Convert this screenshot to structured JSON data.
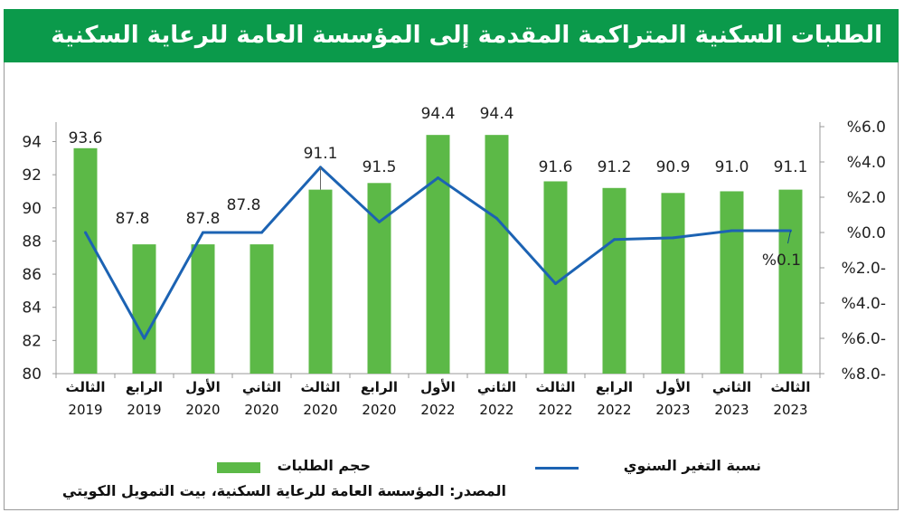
{
  "title": "الطلبات السكنية المتراكمة المقدمة إلى المؤسسة العامة للرعاية السكنية",
  "legend": {
    "bars": "حجم الطلبات",
    "line": "نسبة التغير السنوي"
  },
  "source": "المصدر: المؤسسة العامة للرعاية السكنية، بيت التمويل الكويتي",
  "colors": {
    "header": "#0b9a4b",
    "bar": "#5cb947",
    "line": "#1c63b3"
  },
  "chart_data": {
    "type": "bar+line",
    "title": "الطلبات السكنية المتراكمة المقدمة إلى المؤسسة العامة للرعاية السكنية",
    "categories": [
      {
        "quarter": "الثالث",
        "year": "2019"
      },
      {
        "quarter": "الرابع",
        "year": "2019"
      },
      {
        "quarter": "الأول",
        "year": "2020"
      },
      {
        "quarter": "الثاني",
        "year": "2020"
      },
      {
        "quarter": "الثالث",
        "year": "2020"
      },
      {
        "quarter": "الرابع",
        "year": "2020"
      },
      {
        "quarter": "الأول",
        "year": "2022"
      },
      {
        "quarter": "الثاني",
        "year": "2022"
      },
      {
        "quarter": "الثالث",
        "year": "2022"
      },
      {
        "quarter": "الرابع",
        "year": "2022"
      },
      {
        "quarter": "الأول",
        "year": "2023"
      },
      {
        "quarter": "الثاني",
        "year": "2023"
      },
      {
        "quarter": "الثالث",
        "year": "2023"
      }
    ],
    "series": [
      {
        "name": "حجم الطلبات",
        "type": "bar",
        "axis": "left",
        "values": [
          93.6,
          87.8,
          87.8,
          87.8,
          91.1,
          91.5,
          94.4,
          94.4,
          91.6,
          91.2,
          90.9,
          91.0,
          91.1
        ],
        "labels": [
          "93.6",
          "87.8",
          "87.8",
          "87.8",
          "91.1",
          "91.5",
          "94.4",
          "94.4",
          "91.6",
          "91.2",
          "90.9",
          "91.0",
          "91.1"
        ]
      },
      {
        "name": "نسبة التغير السنوي",
        "type": "line",
        "axis": "right",
        "values": [
          0.0,
          -6.0,
          0.0,
          0.0,
          3.7,
          0.6,
          3.1,
          0.8,
          -2.9,
          -0.4,
          -0.3,
          0.1,
          0.1
        ],
        "last_label": "%0.1"
      }
    ],
    "left_axis": {
      "ticks": [
        "80",
        "82",
        "84",
        "86",
        "88",
        "90",
        "92",
        "94"
      ],
      "values": [
        80,
        82,
        84,
        86,
        88,
        90,
        92,
        94
      ],
      "range": [
        80,
        94.9
      ]
    },
    "right_axis": {
      "ticks": [
        "%6.0",
        "%4.0",
        "%2.0",
        "%0.0",
        "%2.0-",
        "%4.0-",
        "%6.0-",
        "%8.0-"
      ],
      "values": [
        6,
        4,
        2,
        0,
        -2,
        -4,
        -6,
        -8
      ],
      "range": [
        -8,
        6
      ]
    },
    "grid": false,
    "legend_position": "bottom"
  }
}
